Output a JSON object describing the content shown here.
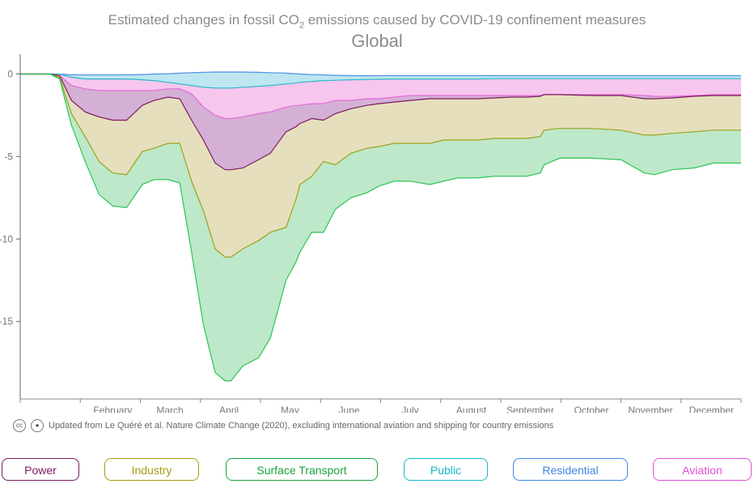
{
  "header": {
    "title_pre": "Estimated changes in fossil CO",
    "title_sub": "2",
    "title_post": " emissions caused by COVID-19 confinement measures",
    "region": "Global"
  },
  "credit": {
    "text": "Updated from Le Quéré et al. Nature Climate Change (2020), excluding international aviation and shipping for country emissions",
    "icons": [
      "creative-commons-icon",
      "attribution-icon"
    ]
  },
  "legend": [
    {
      "label": "Power",
      "color": "#7b1a5e"
    },
    {
      "label": "Industry",
      "color": "#a89a12"
    },
    {
      "label": "Surface Transport",
      "color": "#19a33b"
    },
    {
      "label": "Public",
      "color": "#12b8c9"
    },
    {
      "label": "Residential",
      "color": "#3d86e3"
    },
    {
      "label": "Aviation",
      "color": "#e04fd6"
    }
  ],
  "chart_data": {
    "type": "area",
    "stacked": true,
    "ylim": [
      -19.7,
      1.2
    ],
    "y_ticks": [
      0,
      -5,
      -10,
      -15
    ],
    "y_tick_labels": [
      "0",
      "-5",
      "-10",
      "-15"
    ],
    "x_month_labels": [
      "February",
      "March",
      "April",
      "May",
      "June",
      "July",
      "August",
      "September",
      "October",
      "November",
      "December"
    ],
    "x_month_label_days": [
      47,
      76,
      106,
      137,
      167,
      198,
      229,
      259,
      290,
      320,
      351
    ],
    "x_day_range": [
      0,
      366
    ],
    "x": [
      0,
      15,
      20,
      26,
      33,
      40,
      47,
      54,
      62,
      68,
      75,
      81,
      87,
      93,
      99,
      104,
      107,
      113,
      121,
      127,
      135,
      140,
      142,
      148,
      154,
      160,
      168,
      176,
      182,
      190,
      198,
      208,
      215,
      222,
      232,
      241,
      249,
      257,
      264,
      266,
      274,
      290,
      305,
      317,
      322,
      331,
      342,
      352,
      366
    ],
    "bands": [
      {
        "name": "Power",
        "fill": "#d4b0d6",
        "upper": [
          0,
          0,
          -0.1,
          -0.7,
          -0.9,
          -1.0,
          -1.0,
          -1.0,
          -1.0,
          -1.0,
          -0.9,
          -0.9,
          -1.2,
          -2.0,
          -2.5,
          -2.7,
          -2.7,
          -2.6,
          -2.4,
          -2.3,
          -2.0,
          -1.9,
          -1.9,
          -1.8,
          -1.8,
          -1.6,
          -1.6,
          -1.5,
          -1.5,
          -1.4,
          -1.3,
          -1.3,
          -1.3,
          -1.3,
          -1.3,
          -1.3,
          -1.3,
          -1.3,
          -1.3,
          -1.25,
          -1.25,
          -1.25,
          -1.25,
          -1.3,
          -1.35,
          -1.35,
          -1.3,
          -1.25,
          -1.25
        ],
        "lower": [
          0,
          0,
          -0.1,
          -1.6,
          -2.3,
          -2.6,
          -2.8,
          -2.8,
          -1.9,
          -1.6,
          -1.4,
          -1.5,
          -2.8,
          -4.0,
          -5.4,
          -5.8,
          -5.8,
          -5.7,
          -5.2,
          -4.8,
          -3.5,
          -3.2,
          -3.0,
          -2.7,
          -2.8,
          -2.4,
          -2.1,
          -1.9,
          -1.8,
          -1.7,
          -1.6,
          -1.5,
          -1.5,
          -1.5,
          -1.5,
          -1.45,
          -1.4,
          -1.4,
          -1.35,
          -1.25,
          -1.25,
          -1.3,
          -1.3,
          -1.5,
          -1.5,
          -1.45,
          -1.35,
          -1.3,
          -1.3
        ]
      },
      {
        "name": "Industry",
        "fill": "#e6dfbd",
        "lower": [
          0,
          0,
          -0.2,
          -2.4,
          -3.8,
          -5.3,
          -6.0,
          -6.1,
          -4.7,
          -4.5,
          -4.2,
          -4.2,
          -6.5,
          -8.3,
          -10.6,
          -11.1,
          -11.1,
          -10.6,
          -10.1,
          -9.6,
          -9.3,
          -7.6,
          -6.7,
          -6.2,
          -5.3,
          -5.5,
          -4.8,
          -4.5,
          -4.4,
          -4.2,
          -4.2,
          -4.2,
          -4.0,
          -4.0,
          -4.0,
          -3.9,
          -3.9,
          -3.9,
          -3.8,
          -3.4,
          -3.3,
          -3.3,
          -3.4,
          -3.7,
          -3.7,
          -3.6,
          -3.5,
          -3.4,
          -3.4
        ]
      },
      {
        "name": "Surface Transport",
        "fill": "#bde8c9",
        "lower": [
          0,
          0,
          -0.3,
          -3.1,
          -5.3,
          -7.3,
          -8.0,
          -8.1,
          -6.7,
          -6.4,
          -6.4,
          -6.6,
          -10.8,
          -15.2,
          -18.1,
          -18.6,
          -18.6,
          -17.7,
          -17.2,
          -16.0,
          -12.5,
          -11.4,
          -10.8,
          -9.6,
          -9.6,
          -8.2,
          -7.5,
          -7.2,
          -6.8,
          -6.5,
          -6.5,
          -6.7,
          -6.5,
          -6.3,
          -6.3,
          -6.2,
          -6.2,
          -6.2,
          -6.0,
          -5.5,
          -5.1,
          -5.1,
          -5.2,
          -6.0,
          -6.1,
          -5.8,
          -5.7,
          -5.4,
          -5.4
        ]
      },
      {
        "name": "Aviation",
        "fill": "#f7c6ee",
        "upper": [
          0,
          0,
          0,
          -0.2,
          -0.3,
          -0.3,
          -0.3,
          -0.3,
          -0.35,
          -0.4,
          -0.5,
          -0.6,
          -0.7,
          -0.8,
          -0.85,
          -0.85,
          -0.85,
          -0.8,
          -0.75,
          -0.7,
          -0.6,
          -0.55,
          -0.5,
          -0.45,
          -0.4,
          -0.38,
          -0.35,
          -0.33,
          -0.32,
          -0.3,
          -0.3,
          -0.3,
          -0.3,
          -0.3,
          -0.3,
          -0.28,
          -0.28,
          -0.28,
          -0.28,
          -0.28,
          -0.28,
          -0.28,
          -0.28,
          -0.28,
          -0.28,
          -0.28,
          -0.28,
          -0.28,
          -0.28
        ]
      },
      {
        "name": "Residential",
        "fill": "#bde6f0",
        "upper": [
          0,
          0,
          0,
          -0.05,
          -0.05,
          -0.05,
          -0.05,
          -0.05,
          -0.03,
          0,
          0.02,
          0.05,
          0.08,
          0.1,
          0.12,
          0.12,
          0.12,
          0.12,
          0.1,
          0.08,
          0.05,
          0.02,
          0,
          -0.03,
          -0.05,
          -0.08,
          -0.1,
          -0.1,
          -0.1,
          -0.1,
          -0.1,
          -0.1,
          -0.1,
          -0.1,
          -0.1,
          -0.1,
          -0.1,
          -0.1,
          -0.1,
          -0.1,
          -0.1,
          -0.1,
          -0.1,
          -0.1,
          -0.1,
          -0.1,
          -0.1,
          -0.1,
          -0.1
        ],
        "lower": "aviation.upper"
      }
    ],
    "boundary_lines": [
      {
        "name": "Residential",
        "color": "#4f8fe6",
        "values": "residential.upper"
      },
      {
        "name": "Public",
        "color": "#2cb8c9",
        "values": "aviation.upper"
      },
      {
        "name": "Aviation",
        "color": "#e46bd9",
        "values": "power.upper"
      },
      {
        "name": "Power",
        "color": "#7b1a5e",
        "values": "power.lower"
      },
      {
        "name": "Industry",
        "color": "#9aa31a",
        "values": "industry.lower"
      },
      {
        "name": "Surface Transport",
        "color": "#2dc457",
        "values": "transport.lower"
      }
    ]
  }
}
